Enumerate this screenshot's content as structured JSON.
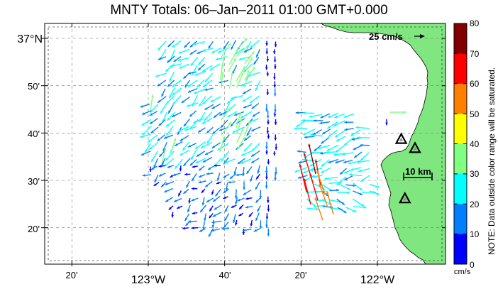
{
  "title": "MNTY Totals: 06–Jan–2011 01:00 GMT+0.000",
  "lat_labels": [
    {
      "text": "37°N",
      "main": true,
      "lat": 37.0
    },
    {
      "text": "50'",
      "main": false,
      "lat": 36.8333
    },
    {
      "text": "40'",
      "main": false,
      "lat": 36.6667
    },
    {
      "text": "30'",
      "main": false,
      "lat": 36.5
    },
    {
      "text": "20'",
      "main": false,
      "lat": 36.3333
    }
  ],
  "lon_labels": [
    {
      "text": "20'",
      "main": false,
      "lon": -123.3333
    },
    {
      "text": "123°W",
      "main": true,
      "lon": -123.0
    },
    {
      "text": "40'",
      "main": false,
      "lon": -122.6667
    },
    {
      "text": "20'",
      "main": false,
      "lon": -122.3333
    },
    {
      "text": "122°W",
      "main": true,
      "lon": -122.0
    }
  ],
  "scale_arrow": {
    "label": "25 cm/s",
    "speed": 25
  },
  "distance_scale": {
    "label": "10 km"
  },
  "colorbar": {
    "ticks": [
      "80",
      "70",
      "60",
      "50",
      "40",
      "30",
      "20",
      "10",
      "0"
    ],
    "colors": [
      "#800000",
      "#ff0000",
      "#ff8000",
      "#ffff00",
      "#80ff80",
      "#00ffff",
      "#0080ff",
      "#0000ff"
    ],
    "unit": "cm/s",
    "note": "NOTE: Data outside color range will be saturated."
  },
  "colors": {
    "land": "#80e680",
    "frame": "#000000",
    "grid": "#777777"
  },
  "sites": [
    {
      "name": "site-1",
      "lon": -121.896,
      "lat": 36.646
    },
    {
      "name": "site-2",
      "lon": -121.836,
      "lat": 36.614
    },
    {
      "name": "site-3",
      "lon": -121.88,
      "lat": 36.437
    }
  ]
}
